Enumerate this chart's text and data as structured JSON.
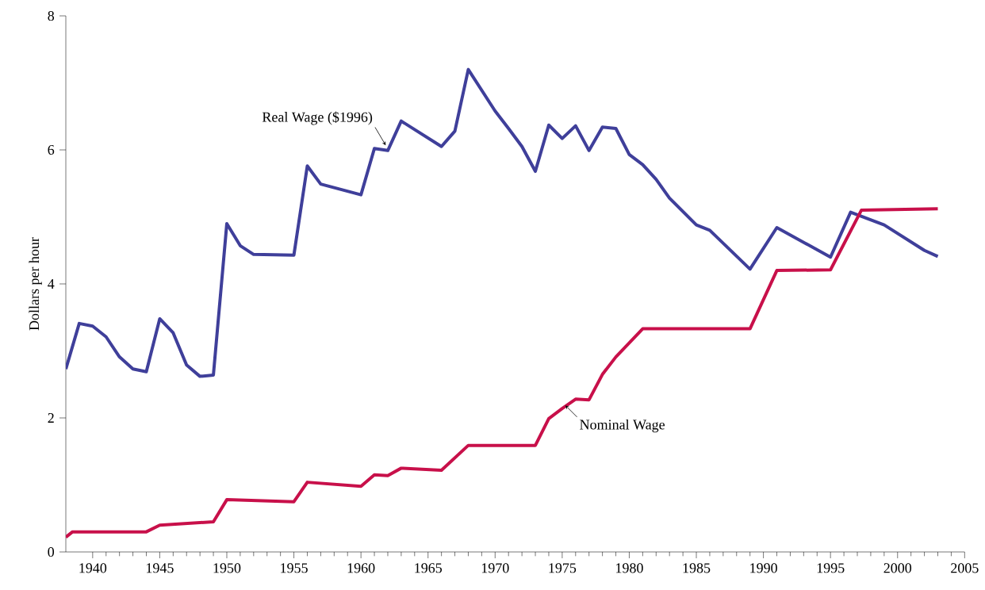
{
  "chart_data": {
    "type": "line",
    "ylabel": "Dollars per hour",
    "xlim": [
      1938,
      2005
    ],
    "ylim": [
      0,
      8
    ],
    "xticks": [
      1940,
      1945,
      1950,
      1955,
      1960,
      1965,
      1970,
      1975,
      1980,
      1985,
      1990,
      1995,
      2000,
      2005
    ],
    "yticks": [
      0,
      2,
      4,
      6,
      8
    ],
    "grid": false,
    "marker": "none",
    "line_style": "solid",
    "series": [
      {
        "color": "#3f3f9a",
        "x": [
          1938,
          1939,
          1940,
          1941,
          1942,
          1943,
          1944,
          1945,
          1946,
          1947,
          1948,
          1949,
          1950,
          1951,
          1952,
          1955,
          1956,
          1957,
          1960,
          1961,
          1962,
          1963,
          1966,
          1967,
          1968,
          1970,
          1971,
          1972,
          1973,
          1974,
          1975,
          1976,
          1977,
          1978,
          1979,
          1980,
          1981,
          1982,
          1983,
          1985,
          1986,
          1989,
          1991,
          1995,
          1996.5,
          1999,
          2002,
          2003
        ],
        "values": [
          2.73,
          3.41,
          3.37,
          3.21,
          2.91,
          2.73,
          2.69,
          3.48,
          3.27,
          2.79,
          2.62,
          2.64,
          4.9,
          4.57,
          4.44,
          4.43,
          5.76,
          5.49,
          5.33,
          6.02,
          5.99,
          6.43,
          6.05,
          6.28,
          7.2,
          6.58,
          6.32,
          6.05,
          5.68,
          6.37,
          6.17,
          6.36,
          5.99,
          6.34,
          6.32,
          5.93,
          5.78,
          5.56,
          5.28,
          4.88,
          4.8,
          4.22,
          4.84,
          4.4,
          5.07,
          4.88,
          4.5,
          4.41
        ]
      },
      {
        "color": "#c8104a",
        "x": [
          1938,
          1938.5,
          1944,
          1945,
          1949,
          1950,
          1955,
          1956,
          1960,
          1961,
          1962,
          1963,
          1966,
          1968,
          1973,
          1974,
          1975,
          1976,
          1977,
          1978,
          1979,
          1980,
          1981,
          1989,
          1991,
          1995,
          1997.3,
          2003
        ],
        "values": [
          0.22,
          0.3,
          0.3,
          0.4,
          0.45,
          0.78,
          0.75,
          1.04,
          0.98,
          1.15,
          1.14,
          1.25,
          1.22,
          1.59,
          1.59,
          1.99,
          2.14,
          2.28,
          2.27,
          2.65,
          2.91,
          3.12,
          3.33,
          3.33,
          4.2,
          4.21,
          5.1,
          5.12
        ]
      }
    ],
    "annotations": [
      {
        "text": "Real Wage ($1996)",
        "x": 1962,
        "y": 5.99
      },
      {
        "text": "Nominal Wage",
        "x": 1975,
        "y": 2.14
      }
    ]
  }
}
